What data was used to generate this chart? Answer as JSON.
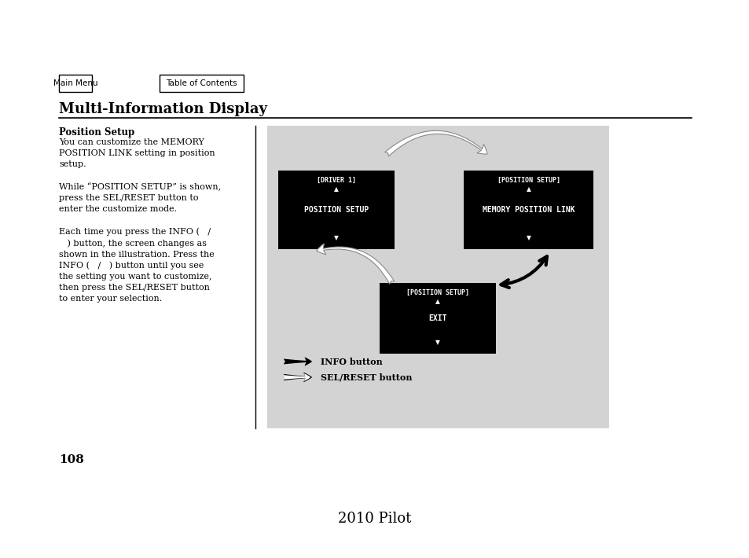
{
  "page_bg": "#ffffff",
  "diagram_bg": "#d3d3d3",
  "title": "Multi-Information Display",
  "section_title": "Position Setup",
  "page_number": "108",
  "footer_text": "2010 Pilot",
  "nav_buttons": [
    "Main Menu",
    "Table of Contents"
  ],
  "body_text": "You can customize the MEMORY\nPOSITION LINK setting in position\nsetup.\n\nWhile “POSITION SETUP” is shown,\npress the SEL/RESET button to\nenter the customize mode.\n\nEach time you press the INFO (   /\n   ) button, the screen changes as\nshown in the illustration. Press the\nINFO (   /   ) button until you see\nthe setting you want to customize,\nthen press the SEL/RESET button\nto enter your selection.",
  "sc1_title": "[DRIVER 1]",
  "sc1_label": "POSITION SETUP",
  "sc2_title": "[POSITION SETUP]",
  "sc2_label": "MEMORY POSITION LINK",
  "sc3_title": "[POSITION SETUP]",
  "sc3_label": "EXIT",
  "legend_info": "INFO button",
  "legend_sel": "SEL/RESET button"
}
